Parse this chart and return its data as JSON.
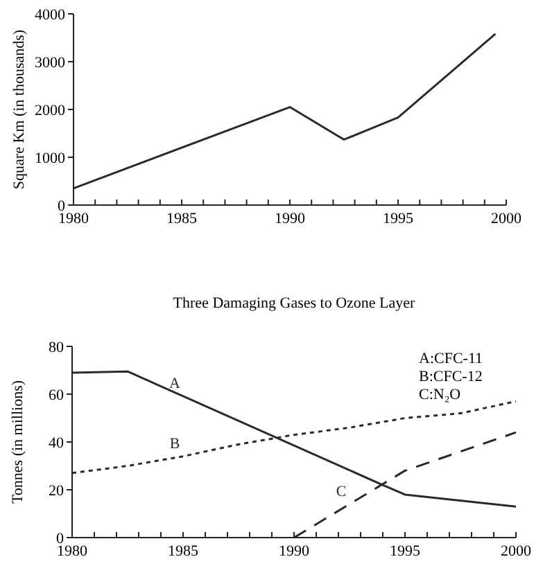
{
  "chart_data": [
    {
      "type": "line",
      "ylabel": "Square Km (in thousands)",
      "xlim": [
        1980,
        2000
      ],
      "ylim": [
        0,
        4000
      ],
      "yticks": [
        0,
        1000,
        2000,
        3000,
        4000
      ],
      "xticks": [
        1980,
        {
          "value": 1981,
          "label": null
        },
        {
          "value": 1982,
          "label": null
        },
        {
          "value": 1983,
          "label": null
        },
        {
          "value": 1984,
          "label": null
        },
        1985,
        {
          "value": 1986,
          "label": null
        },
        {
          "value": 1987,
          "label": null
        },
        {
          "value": 1988,
          "label": null
        },
        {
          "value": 1989,
          "label": null
        },
        1990,
        {
          "value": 1991,
          "label": null
        },
        {
          "value": 1992,
          "label": null
        },
        {
          "value": 1993,
          "label": null
        },
        {
          "value": 1994,
          "label": null
        },
        1995,
        {
          "value": 1996,
          "label": null
        },
        {
          "value": 1997,
          "label": null
        },
        {
          "value": 1998,
          "label": null
        },
        {
          "value": 1999,
          "label": null
        },
        2000
      ],
      "series": [
        {
          "color": "#2a2a2a",
          "line_style": "solid",
          "x": [
            1980,
            1990,
            1992.5,
            1995,
            1999.5
          ],
          "values": [
            350,
            2050,
            1370,
            1830,
            3580
          ]
        }
      ],
      "grid": false,
      "marker": "none"
    },
    {
      "type": "line",
      "title": "Three Damaging Gases to Ozone Layer",
      "ylabel": "Tonnes (in millions)",
      "xlim": [
        1980,
        2000
      ],
      "ylim": [
        0,
        80
      ],
      "yticks": [
        0,
        20,
        40,
        60,
        80
      ],
      "xticks": [
        1980,
        {
          "value": 1981,
          "label": null
        },
        {
          "value": 1982,
          "label": null
        },
        {
          "value": 1983,
          "label": null
        },
        {
          "value": 1984,
          "label": null
        },
        1985,
        {
          "value": 1986,
          "label": null
        },
        {
          "value": 1987,
          "label": null
        },
        {
          "value": 1988,
          "label": null
        },
        {
          "value": 1989,
          "label": null
        },
        1990,
        {
          "value": 1991,
          "label": null
        },
        {
          "value": 1992,
          "label": null
        },
        {
          "value": 1993,
          "label": null
        },
        {
          "value": 1994,
          "label": null
        },
        1995,
        {
          "value": 1996,
          "label": null
        },
        {
          "value": 1997,
          "label": null
        },
        {
          "value": 1998,
          "label": null
        },
        {
          "value": 1999,
          "label": null
        },
        2000
      ],
      "series": [
        {
          "name": "A",
          "color": "#2a2a2a",
          "line_style": "solid",
          "x": [
            1980,
            1982.5,
            1994,
            1995,
            2000
          ],
          "values": [
            69,
            69.5,
            22,
            18,
            13
          ]
        },
        {
          "name": "B",
          "color": "#2a2a2a",
          "line_style": "dotted",
          "x": [
            1980,
            1982.5,
            1985,
            1987.5,
            1990,
            1992.5,
            1995,
            1997.5,
            2000
          ],
          "values": [
            27,
            30,
            34,
            39,
            43,
            46,
            50,
            52,
            57
          ]
        },
        {
          "name": "C",
          "color": "#2a2a2a",
          "line_style": "dashed",
          "x": [
            1990,
            1995,
            2000
          ],
          "values": [
            0,
            28,
            44
          ]
        }
      ],
      "annotations": [
        "A:CFC-11",
        "B:CFC-12",
        "C:N₂O"
      ],
      "grid": false,
      "marker": "none"
    }
  ]
}
